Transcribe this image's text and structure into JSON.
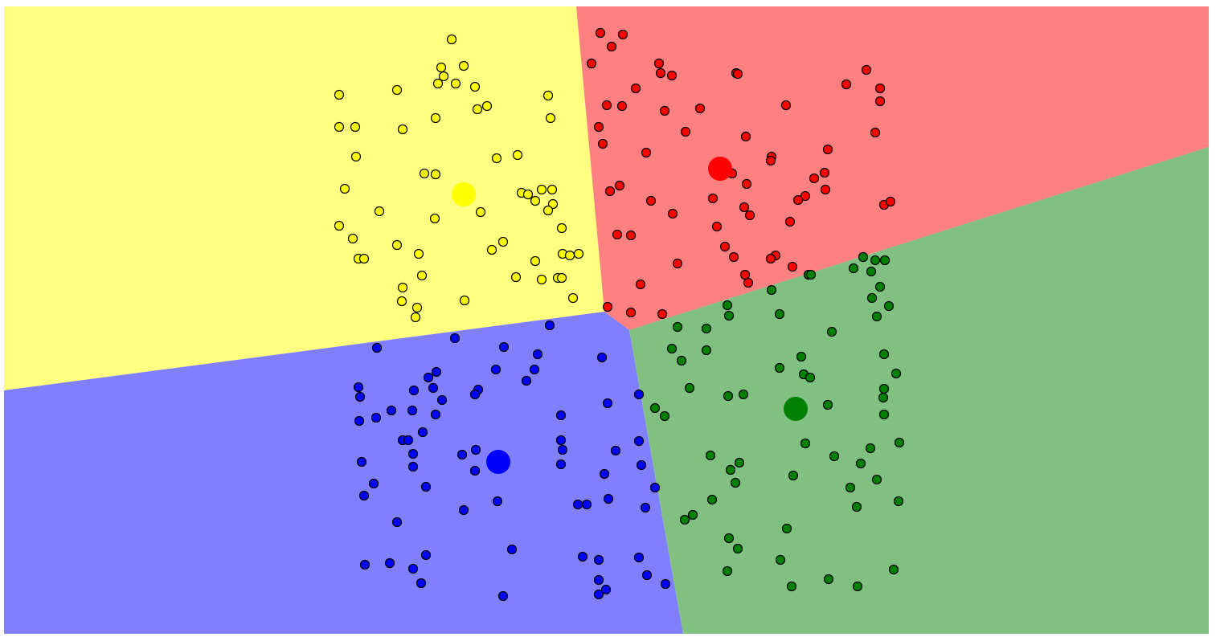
{
  "clusters": [
    {
      "name": "yellow",
      "region_color": "#ffff80",
      "point_color": "#ffff00",
      "centroid": [
        577,
        242
      ],
      "points": [
        [
          562,
          49
        ],
        [
          577,
          82
        ],
        [
          549,
          84
        ],
        [
          552,
          95
        ],
        [
          545,
          104
        ],
        [
          567,
          104
        ],
        [
          591,
          108
        ],
        [
          494,
          112
        ],
        [
          422,
          118
        ],
        [
          682,
          119
        ],
        [
          606,
          132
        ],
        [
          594,
          136
        ],
        [
          542,
          147
        ],
        [
          685,
          147
        ],
        [
          422,
          158
        ],
        [
          442,
          158
        ],
        [
          501,
          161
        ],
        [
          443,
          195
        ],
        [
          644,
          193
        ],
        [
          618,
          197
        ],
        [
          528,
          216
        ],
        [
          542,
          217
        ],
        [
          429,
          235
        ],
        [
          649,
          240
        ],
        [
          657,
          242
        ],
        [
          674,
          236
        ],
        [
          687,
          236
        ],
        [
          666,
          250
        ],
        [
          688,
          254
        ],
        [
          682,
          262
        ],
        [
          472,
          263
        ],
        [
          598,
          264
        ],
        [
          541,
          272
        ],
        [
          422,
          281
        ],
        [
          699,
          284
        ],
        [
          439,
          297
        ],
        [
          626,
          301
        ],
        [
          494,
          305
        ],
        [
          612,
          311
        ],
        [
          521,
          316
        ],
        [
          700,
          316
        ],
        [
          709,
          318
        ],
        [
          720,
          316
        ],
        [
          446,
          322
        ],
        [
          453,
          322
        ],
        [
          666,
          325
        ],
        [
          525,
          343
        ],
        [
          642,
          345
        ],
        [
          674,
          348
        ],
        [
          694,
          346
        ],
        [
          699,
          346
        ],
        [
          501,
          358
        ],
        [
          713,
          371
        ],
        [
          500,
          375
        ],
        [
          578,
          374
        ],
        [
          519,
          383
        ],
        [
          517,
          395
        ]
      ]
    },
    {
      "name": "red",
      "region_color": "#ff8080",
      "point_color": "#ff0000",
      "centroid": [
        896,
        210
      ],
      "points": [
        [
          747,
          41
        ],
        [
          775,
          43
        ],
        [
          761,
          58
        ],
        [
          736,
          79
        ],
        [
          820,
          79
        ],
        [
          822,
          91
        ],
        [
          836,
          94
        ],
        [
          916,
          91
        ],
        [
          918,
          92
        ],
        [
          1078,
          87
        ],
        [
          1053,
          105
        ],
        [
          1095,
          110
        ],
        [
          1095,
          126
        ],
        [
          791,
          110
        ],
        [
          755,
          131
        ],
        [
          774,
          132
        ],
        [
          827,
          138
        ],
        [
          871,
          135
        ],
        [
          978,
          131
        ],
        [
          745,
          158
        ],
        [
          853,
          164
        ],
        [
          1089,
          165
        ],
        [
          928,
          170
        ],
        [
          750,
          179
        ],
        [
          804,
          190
        ],
        [
          1030,
          186
        ],
        [
          960,
          195
        ],
        [
          959,
          200
        ],
        [
          911,
          216
        ],
        [
          1026,
          215
        ],
        [
          1013,
          222
        ],
        [
          929,
          229
        ],
        [
          771,
          231
        ],
        [
          759,
          238
        ],
        [
          1027,
          236
        ],
        [
          887,
          247
        ],
        [
          1002,
          244
        ],
        [
          993,
          249
        ],
        [
          810,
          250
        ],
        [
          926,
          258
        ],
        [
          1100,
          255
        ],
        [
          1108,
          251
        ],
        [
          837,
          266
        ],
        [
          933,
          268
        ],
        [
          983,
          276
        ],
        [
          892,
          282
        ],
        [
          768,
          292
        ],
        [
          785,
          293
        ],
        [
          902,
          307
        ],
        [
          913,
          320
        ],
        [
          965,
          318
        ],
        [
          959,
          322
        ],
        [
          843,
          328
        ],
        [
          986,
          332
        ],
        [
          927,
          342
        ],
        [
          931,
          352
        ],
        [
          797,
          354
        ],
        [
          756,
          382
        ],
        [
          785,
          389
        ],
        [
          824,
          391
        ]
      ]
    },
    {
      "name": "blue",
      "region_color": "#8080ff",
      "point_color": "#0000ff",
      "centroid": [
        620,
        575
      ],
      "points": [
        [
          684,
          405
        ],
        [
          566,
          421
        ],
        [
          469,
          433
        ],
        [
          627,
          432
        ],
        [
          669,
          441
        ],
        [
          749,
          445
        ],
        [
          617,
          460
        ],
        [
          665,
          460
        ],
        [
          543,
          463
        ],
        [
          533,
          470
        ],
        [
          655,
          474
        ],
        [
          539,
          483
        ],
        [
          446,
          482
        ],
        [
          515,
          486
        ],
        [
          595,
          485
        ],
        [
          591,
          491
        ],
        [
          448,
          494
        ],
        [
          550,
          498
        ],
        [
          795,
          491
        ],
        [
          756,
          502
        ],
        [
          487,
          511
        ],
        [
          513,
          511
        ],
        [
          542,
          516
        ],
        [
          698,
          517
        ],
        [
          468,
          520
        ],
        [
          447,
          524
        ],
        [
          526,
          538
        ],
        [
          501,
          548
        ],
        [
          508,
          548
        ],
        [
          698,
          548
        ],
        [
          795,
          549
        ],
        [
          700,
          560
        ],
        [
          514,
          565
        ],
        [
          575,
          566
        ],
        [
          592,
          560
        ],
        [
          766,
          561
        ],
        [
          450,
          575
        ],
        [
          514,
          581
        ],
        [
          591,
          586
        ],
        [
          698,
          578
        ],
        [
          798,
          579
        ],
        [
          752,
          590
        ],
        [
          465,
          602
        ],
        [
          530,
          606
        ],
        [
          815,
          607
        ],
        [
          453,
          617
        ],
        [
          757,
          621
        ],
        [
          619,
          624
        ],
        [
          719,
          628
        ],
        [
          730,
          628
        ],
        [
          803,
          632
        ],
        [
          577,
          635
        ],
        [
          494,
          650
        ],
        [
          637,
          684
        ],
        [
          530,
          691
        ],
        [
          725,
          693
        ],
        [
          795,
          694
        ],
        [
          745,
          697
        ],
        [
          454,
          703
        ],
        [
          485,
          701
        ],
        [
          514,
          708
        ],
        [
          805,
          716
        ],
        [
          745,
          722
        ],
        [
          524,
          726
        ],
        [
          828,
          727
        ],
        [
          754,
          734
        ],
        [
          745,
          740
        ],
        [
          626,
          742
        ]
      ]
    },
    {
      "name": "green",
      "region_color": "#80c080",
      "point_color": "#008000",
      "centroid": [
        990,
        509
      ],
      "points": [
        [
          1074,
          320
        ],
        [
          1089,
          324
        ],
        [
          1101,
          324
        ],
        [
          1062,
          334
        ],
        [
          1084,
          338
        ],
        [
          1006,
          342
        ],
        [
          1009,
          342
        ],
        [
          1095,
          357
        ],
        [
          960,
          361
        ],
        [
          1085,
          371
        ],
        [
          905,
          380
        ],
        [
          1106,
          381
        ],
        [
          907,
          393
        ],
        [
          970,
          391
        ],
        [
          1091,
          394
        ],
        [
          843,
          407
        ],
        [
          879,
          409
        ],
        [
          1035,
          413
        ],
        [
          836,
          434
        ],
        [
          879,
          436
        ],
        [
          997,
          444
        ],
        [
          1100,
          441
        ],
        [
          848,
          449
        ],
        [
          970,
          458
        ],
        [
          1000,
          466
        ],
        [
          1008,
          470
        ],
        [
          1115,
          465
        ],
        [
          858,
          483
        ],
        [
          1100,
          484
        ],
        [
          906,
          493
        ],
        [
          925,
          491
        ],
        [
          1099,
          495
        ],
        [
          1030,
          504
        ],
        [
          815,
          508
        ],
        [
          827,
          518
        ],
        [
          1100,
          516
        ],
        [
          1002,
          552
        ],
        [
          1119,
          551
        ],
        [
          1083,
          558
        ],
        [
          884,
          567
        ],
        [
          1038,
          568
        ],
        [
          920,
          576
        ],
        [
          1071,
          577
        ],
        [
          909,
          585
        ],
        [
          987,
          592
        ],
        [
          1091,
          597
        ],
        [
          915,
          601
        ],
        [
          1058,
          607
        ],
        [
          886,
          622
        ],
        [
          1118,
          624
        ],
        [
          1066,
          631
        ],
        [
          862,
          641
        ],
        [
          852,
          647
        ],
        [
          979,
          658
        ],
        [
          907,
          670
        ],
        [
          918,
          683
        ],
        [
          971,
          697
        ],
        [
          905,
          711
        ],
        [
          1112,
          709
        ],
        [
          1031,
          721
        ],
        [
          1067,
          730
        ],
        [
          985,
          730
        ]
      ]
    }
  ]
}
